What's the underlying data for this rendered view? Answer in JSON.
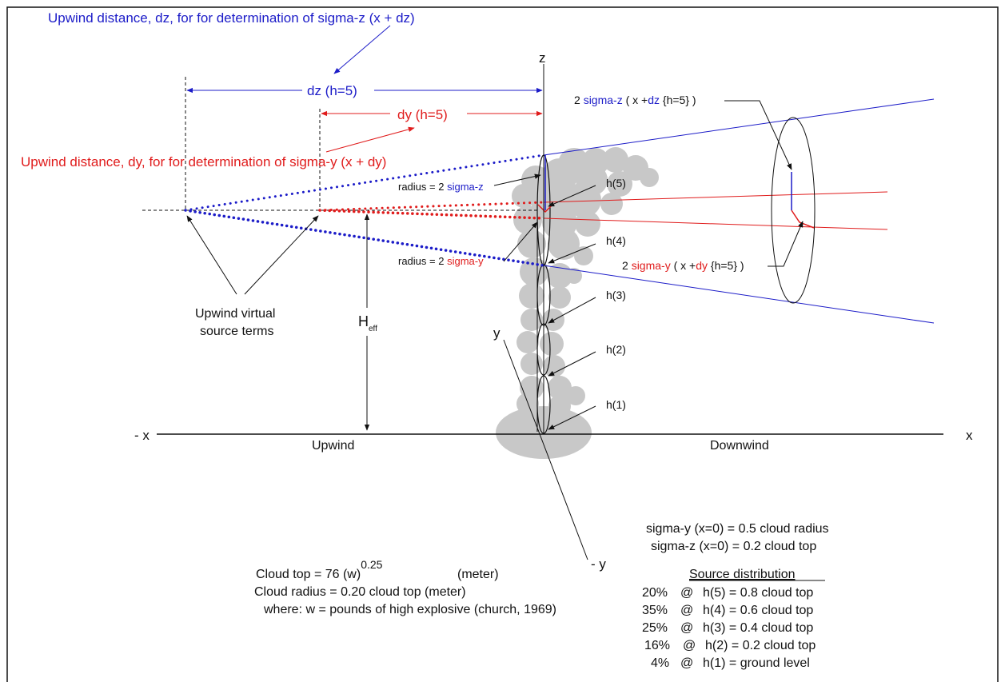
{
  "colors": {
    "blue": "#1c1cc8",
    "red": "#e01c1c",
    "black": "#111111",
    "cloud": "#c8c8c8"
  },
  "header": {
    "dz_note": "Upwind distance, dz, for for determination of sigma-z (x + dz)",
    "dy_note": "Upwind distance, dy, for for determination of  sigma-y (x + dy)"
  },
  "axes": {
    "z": "z",
    "x": "x",
    "neg_x": "- x",
    "y": "y",
    "neg_y": "- y",
    "upwind": "Upwind",
    "downwind": "Downwind"
  },
  "dims": {
    "dz": "dz (h=5)",
    "dy": "dy (h=5)",
    "heff_main": "H",
    "heff_sub": "eff"
  },
  "radius": {
    "z_prefix": "radius = 2 ",
    "z_term": "sigma-z",
    "y_prefix": "radius = 2 ",
    "y_term": "sigma-y"
  },
  "levels": [
    "h(5)",
    "h(4)",
    "h(3)",
    "h(2)",
    "h(1)"
  ],
  "virtual_source": [
    "Upwind virtual",
    "source terms"
  ],
  "far_labels": {
    "sz_a": "2 ",
    "sz_b": "sigma-z",
    "sz_c": " ( x +",
    "sz_d": "dz",
    "sz_e": " {h=5} )",
    "sy_a": "2 ",
    "sy_b": "sigma-y",
    "sy_c": " ( x +",
    "sy_d": "dy",
    "sy_e": " {h=5} )"
  },
  "formulas": {
    "cloud_top": "Cloud top = 76 (w)",
    "cloud_top_exp": "0.25",
    "meter": "(meter)",
    "cloud_radius": "Cloud radius = 0.20 cloud top    (meter)",
    "where": "where: w = pounds of high explosive (church, 1969)"
  },
  "sigma_init": [
    "sigma-y (x=0)  =  0.5 cloud radius",
    "sigma-z (x=0)  =  0.2 cloud top"
  ],
  "distribution": {
    "title": "Source distribution",
    "rows": [
      {
        "pct": "20%",
        "at": "@",
        "desc": "h(5)  =  0.8 cloud top"
      },
      {
        "pct": "35%",
        "at": "@",
        "desc": "h(4)  =  0.6 cloud top"
      },
      {
        "pct": "25%",
        "at": "@",
        "desc": "h(3)  =  0.4 cloud top"
      },
      {
        "pct": "16%",
        "at": "@",
        "desc": "h(2)  =  0.2 cloud top"
      },
      {
        "pct": "4%",
        "at": "@",
        "desc": "h(1)  =  ground level"
      }
    ]
  }
}
